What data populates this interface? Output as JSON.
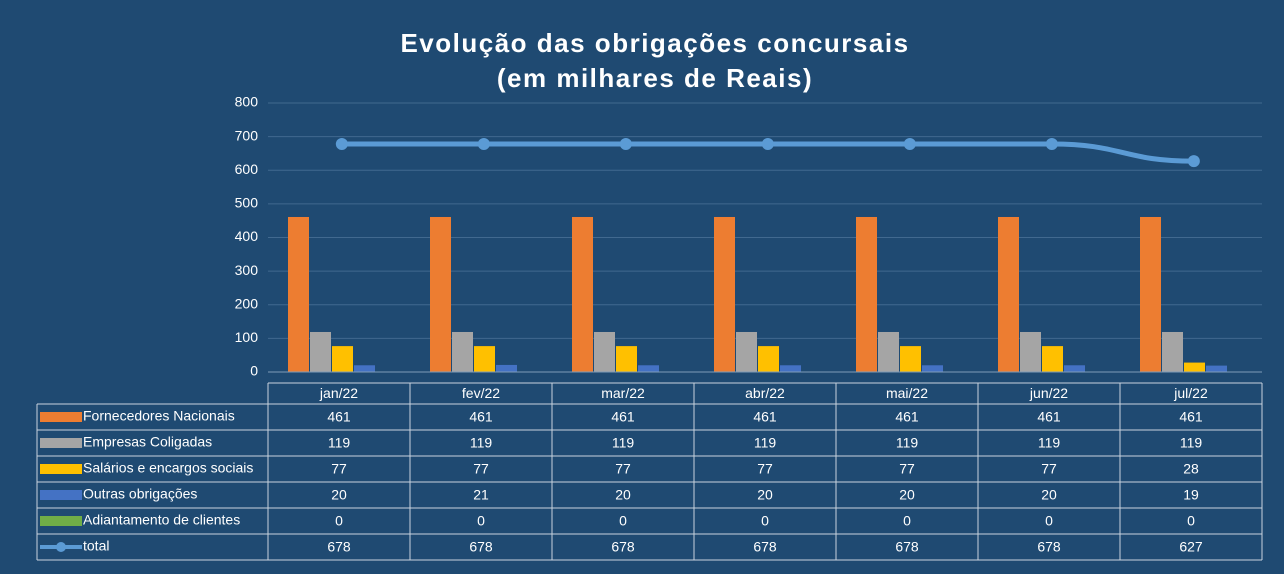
{
  "chart_data": {
    "type": "bar",
    "title": "Evolução das obrigações concursais",
    "subtitle": "(em milhares de Reais)",
    "categories": [
      "jan/22",
      "fev/22",
      "mar/22",
      "abr/22",
      "mai/22",
      "jun/22",
      "jul/22"
    ],
    "series": [
      {
        "name": "Fornecedores Nacionais",
        "color": "#ed7d31",
        "type": "bar",
        "values": [
          461,
          461,
          461,
          461,
          461,
          461,
          461
        ]
      },
      {
        "name": "Empresas Coligadas",
        "color": "#a5a5a5",
        "type": "bar",
        "values": [
          119,
          119,
          119,
          119,
          119,
          119,
          119
        ]
      },
      {
        "name": "Salários e encargos sociais",
        "color": "#ffc000",
        "type": "bar",
        "values": [
          77,
          77,
          77,
          77,
          77,
          77,
          28
        ]
      },
      {
        "name": "Outras obrigações",
        "color": "#4472c4",
        "type": "bar",
        "values": [
          20,
          21,
          20,
          20,
          20,
          20,
          19
        ]
      },
      {
        "name": "Adiantamento de clientes",
        "color": "#70ad47",
        "type": "bar",
        "values": [
          0,
          0,
          0,
          0,
          0,
          0,
          0
        ]
      },
      {
        "name": "total",
        "color": "#5b9bd5",
        "type": "line",
        "values": [
          678,
          678,
          678,
          678,
          678,
          678,
          627
        ]
      }
    ],
    "ylim": [
      0,
      800
    ],
    "yticks": [
      0,
      100,
      200,
      300,
      400,
      500,
      600,
      700,
      800
    ],
    "grid": true
  }
}
